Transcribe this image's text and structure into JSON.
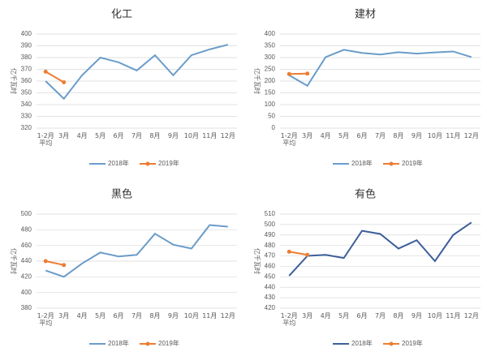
{
  "chart_data": [
    {
      "type": "line",
      "title": "化工",
      "ylabel": "亿千瓦时",
      "categories": [
        "1-2月平均",
        "3月",
        "4月",
        "5月",
        "6月",
        "7月",
        "8月",
        "9月",
        "10月",
        "11月",
        "12月"
      ],
      "series": [
        {
          "name": "2018年",
          "color": "#6a9cc9",
          "values": [
            360,
            345,
            365,
            380,
            376,
            369,
            382,
            365,
            382,
            387,
            391
          ]
        },
        {
          "name": "2019年",
          "color": "#ed7d31",
          "values": [
            368,
            359,
            null,
            null,
            null,
            null,
            null,
            null,
            null,
            null,
            null
          ]
        }
      ],
      "ylim": [
        320,
        400
      ],
      "yticks": [
        320,
        330,
        340,
        350,
        360,
        370,
        380,
        390,
        400
      ],
      "grid": true,
      "legend": "bottom"
    },
    {
      "type": "line",
      "title": "建材",
      "ylabel": "亿千瓦时",
      "categories": [
        "1-2月平均",
        "3月",
        "4月",
        "5月",
        "6月",
        "7月",
        "8月",
        "9月",
        "10月",
        "11月",
        "12月"
      ],
      "series": [
        {
          "name": "2018年",
          "color": "#6a9cc9",
          "values": [
            225,
            180,
            302,
            333,
            320,
            313,
            323,
            317,
            322,
            326,
            302
          ]
        },
        {
          "name": "2019年",
          "color": "#ed7d31",
          "values": [
            230,
            232,
            null,
            null,
            null,
            null,
            null,
            null,
            null,
            null,
            null
          ]
        }
      ],
      "ylim": [
        0,
        400
      ],
      "yticks": [
        0,
        50,
        100,
        150,
        200,
        250,
        300,
        350,
        400
      ],
      "grid": true,
      "legend": "bottom"
    },
    {
      "type": "line",
      "title": "黑色",
      "ylabel": "亿千瓦时",
      "categories": [
        "1-2月平均",
        "3月",
        "4月",
        "5月",
        "6月",
        "7月",
        "8月",
        "9月",
        "10月",
        "11月",
        "12月"
      ],
      "series": [
        {
          "name": "2018年",
          "color": "#6a9cc9",
          "values": [
            428,
            420,
            437,
            451,
            446,
            448,
            475,
            461,
            456,
            486,
            484
          ]
        },
        {
          "name": "2019年",
          "color": "#ed7d31",
          "values": [
            440,
            435,
            null,
            null,
            null,
            null,
            null,
            null,
            null,
            null,
            null
          ]
        }
      ],
      "ylim": [
        380,
        500
      ],
      "yticks": [
        380,
        400,
        420,
        440,
        460,
        480,
        500
      ],
      "grid": true,
      "legend": "bottom"
    },
    {
      "type": "line",
      "title": "有色",
      "ylabel": "亿千瓦时",
      "categories": [
        "1-2月平均",
        "3月",
        "4月",
        "5月",
        "6月",
        "7月",
        "8月",
        "9月",
        "10月",
        "11月",
        "12月"
      ],
      "series": [
        {
          "name": "2018年",
          "color": "#3d5f9a",
          "values": [
            451,
            470,
            471,
            468,
            494,
            491,
            477,
            485,
            465,
            490,
            502
          ]
        },
        {
          "name": "2019年",
          "color": "#ed7d31",
          "values": [
            474,
            471,
            null,
            null,
            null,
            null,
            null,
            null,
            null,
            null,
            null
          ]
        }
      ],
      "ylim": [
        420,
        510
      ],
      "yticks": [
        420,
        430,
        440,
        450,
        460,
        470,
        480,
        490,
        500,
        510
      ],
      "grid": true,
      "legend": "bottom"
    }
  ]
}
